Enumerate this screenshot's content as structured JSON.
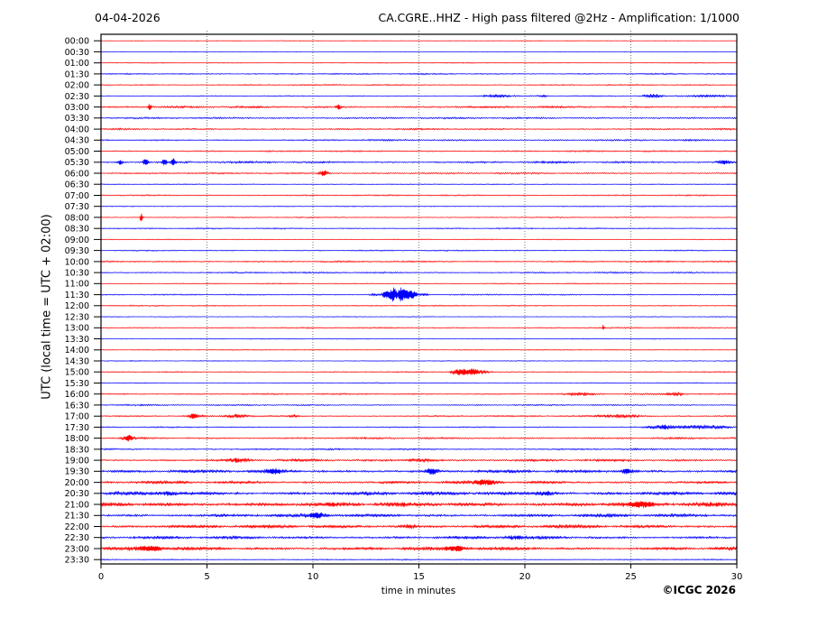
{
  "header": {
    "date": "04-04-2026",
    "title": "CA.CGRE..HHZ - High pass filtered @2Hz - Amplification: 1/1000"
  },
  "footer": {
    "copyright": "©ICGC 2026"
  },
  "chart_data": {
    "type": "helicorder",
    "station": "CA.CGRE..HHZ",
    "date": "04-04-2026",
    "title": "CA.CGRE..HHZ - High pass filtered @2Hz - Amplification: 1/1000",
    "xlabel": "time in minutes",
    "ylabel": "UTC (local time = UTC + 02:00)",
    "xlim": [
      0,
      30
    ],
    "x_ticks": [
      0,
      5,
      10,
      15,
      20,
      25,
      30
    ],
    "grid_minutes": [
      5,
      10,
      15,
      20,
      25
    ],
    "grid_on": true,
    "grid_color": "#555555",
    "axis_color": "#000000",
    "trace_colors": {
      "hour": "#ff0000",
      "half_hour": "#0000ff"
    },
    "minutes_per_row": 30,
    "rows": [
      {
        "time": "00:00",
        "color": "red",
        "noise": 0.35,
        "events": []
      },
      {
        "time": "00:30",
        "color": "blue",
        "noise": 0.35,
        "events": []
      },
      {
        "time": "01:00",
        "color": "red",
        "noise": 0.5,
        "events": []
      },
      {
        "time": "01:30",
        "color": "blue",
        "noise": 0.85,
        "events": []
      },
      {
        "time": "02:00",
        "color": "red",
        "noise": 0.75,
        "events": []
      },
      {
        "time": "02:30",
        "color": "blue",
        "noise": 0.6,
        "events": [
          {
            "m": 18.6,
            "d": 1.6,
            "a": 1.4
          },
          {
            "m": 20.8,
            "d": 0.6,
            "a": 0.9
          },
          {
            "m": 26.0,
            "d": 0.9,
            "a": 1.7
          },
          {
            "m": 28.7,
            "d": 2.5,
            "a": 1.1
          }
        ]
      },
      {
        "time": "03:00",
        "color": "red",
        "noise": 1.15,
        "events": [
          {
            "m": 2.3,
            "d": 0.15,
            "a": 2.6
          },
          {
            "m": 11.2,
            "d": 0.3,
            "a": 1.9
          }
        ]
      },
      {
        "time": "03:30",
        "color": "blue",
        "noise": 1.0,
        "events": []
      },
      {
        "time": "04:00",
        "color": "red",
        "noise": 0.95,
        "events": []
      },
      {
        "time": "04:30",
        "color": "blue",
        "noise": 0.95,
        "events": []
      },
      {
        "time": "05:00",
        "color": "red",
        "noise": 0.85,
        "events": []
      },
      {
        "time": "05:30",
        "color": "blue",
        "noise": 1.15,
        "events": [
          {
            "m": 0.9,
            "d": 0.25,
            "a": 2.2
          },
          {
            "m": 2.1,
            "d": 0.3,
            "a": 2.6
          },
          {
            "m": 3.0,
            "d": 0.25,
            "a": 2.4
          },
          {
            "m": 3.4,
            "d": 0.2,
            "a": 3.2
          },
          {
            "m": 29.4,
            "d": 0.8,
            "a": 1.8
          }
        ]
      },
      {
        "time": "06:00",
        "color": "red",
        "noise": 0.9,
        "events": [
          {
            "m": 10.5,
            "d": 0.45,
            "a": 2.4
          }
        ]
      },
      {
        "time": "06:30",
        "color": "blue",
        "noise": 0.55,
        "events": []
      },
      {
        "time": "07:00",
        "color": "red",
        "noise": 0.8,
        "events": []
      },
      {
        "time": "07:30",
        "color": "blue",
        "noise": 0.55,
        "events": []
      },
      {
        "time": "08:00",
        "color": "red",
        "noise": 0.6,
        "events": [
          {
            "m": 1.9,
            "d": 0.12,
            "a": 4.5
          }
        ]
      },
      {
        "time": "08:30",
        "color": "blue",
        "noise": 0.75,
        "events": []
      },
      {
        "time": "09:00",
        "color": "red",
        "noise": 0.5,
        "events": []
      },
      {
        "time": "09:30",
        "color": "blue",
        "noise": 0.7,
        "events": []
      },
      {
        "time": "10:00",
        "color": "red",
        "noise": 0.9,
        "events": []
      },
      {
        "time": "10:30",
        "color": "blue",
        "noise": 0.9,
        "events": []
      },
      {
        "time": "11:00",
        "color": "red",
        "noise": 0.6,
        "events": []
      },
      {
        "time": "11:30",
        "color": "blue",
        "noise": 0.7,
        "events": [
          {
            "m": 12.9,
            "d": 0.5,
            "a": 1.2
          },
          {
            "m": 13.5,
            "d": 0.5,
            "a": 3.5
          },
          {
            "m": 13.8,
            "d": 0.3,
            "a": 6.5
          },
          {
            "m": 14.15,
            "d": 0.3,
            "a": 7.5
          },
          {
            "m": 14.45,
            "d": 0.3,
            "a": 6.0
          },
          {
            "m": 14.75,
            "d": 0.4,
            "a": 3.0
          },
          {
            "m": 15.2,
            "d": 0.5,
            "a": 1.2
          }
        ]
      },
      {
        "time": "12:00",
        "color": "red",
        "noise": 0.7,
        "events": []
      },
      {
        "time": "12:30",
        "color": "blue",
        "noise": 0.45,
        "events": []
      },
      {
        "time": "13:00",
        "color": "red",
        "noise": 0.75,
        "events": [
          {
            "m": 23.7,
            "d": 0.1,
            "a": 2.8
          }
        ]
      },
      {
        "time": "13:30",
        "color": "blue",
        "noise": 0.55,
        "events": []
      },
      {
        "time": "14:00",
        "color": "red",
        "noise": 0.55,
        "events": []
      },
      {
        "time": "14:30",
        "color": "blue",
        "noise": 0.5,
        "events": []
      },
      {
        "time": "15:00",
        "color": "red",
        "noise": 0.65,
        "events": [
          {
            "m": 16.6,
            "d": 0.4,
            "a": 1.5
          },
          {
            "m": 17.0,
            "d": 0.5,
            "a": 3.2
          },
          {
            "m": 17.5,
            "d": 0.5,
            "a": 3.0
          },
          {
            "m": 18.0,
            "d": 0.6,
            "a": 1.6
          }
        ]
      },
      {
        "time": "15:30",
        "color": "blue",
        "noise": 0.55,
        "events": []
      },
      {
        "time": "16:00",
        "color": "red",
        "noise": 0.85,
        "events": [
          {
            "m": 22.6,
            "d": 1.2,
            "a": 1.2
          },
          {
            "m": 27.1,
            "d": 0.9,
            "a": 1.5
          }
        ]
      },
      {
        "time": "16:30",
        "color": "blue",
        "noise": 0.75,
        "events": [
          {
            "m": 1.5,
            "d": 2.0,
            "a": 0.6
          }
        ]
      },
      {
        "time": "17:00",
        "color": "red",
        "noise": 0.9,
        "events": [
          {
            "m": 4.4,
            "d": 0.6,
            "a": 1.8
          },
          {
            "m": 6.4,
            "d": 1.0,
            "a": 1.8
          },
          {
            "m": 9.1,
            "d": 0.5,
            "a": 1.2
          },
          {
            "m": 24.5,
            "d": 2.2,
            "a": 1.4
          }
        ]
      },
      {
        "time": "17:30",
        "color": "blue",
        "noise": 0.75,
        "events": [
          {
            "m": 26.5,
            "d": 1.5,
            "a": 1.9
          },
          {
            "m": 28.5,
            "d": 2.5,
            "a": 1.5
          }
        ]
      },
      {
        "time": "18:00",
        "color": "red",
        "noise": 1.05,
        "events": [
          {
            "m": 1.3,
            "d": 0.5,
            "a": 2.2
          }
        ]
      },
      {
        "time": "18:30",
        "color": "blue",
        "noise": 0.95,
        "events": []
      },
      {
        "time": "19:00",
        "color": "red",
        "noise": 1.25,
        "events": [
          {
            "m": 6.5,
            "d": 1.0,
            "a": 1.2
          },
          {
            "m": 15.2,
            "d": 1.5,
            "a": 1.4
          }
        ]
      },
      {
        "time": "19:30",
        "color": "blue",
        "noise": 1.6,
        "events": [
          {
            "m": 8.2,
            "d": 0.8,
            "a": 1.5
          },
          {
            "m": 15.6,
            "d": 0.5,
            "a": 2.4
          },
          {
            "m": 24.8,
            "d": 0.6,
            "a": 1.8
          }
        ]
      },
      {
        "time": "20:00",
        "color": "red",
        "noise": 1.5,
        "events": [
          {
            "m": 18.2,
            "d": 1.2,
            "a": 1.6
          }
        ]
      },
      {
        "time": "20:30",
        "color": "blue",
        "noise": 1.85,
        "events": [
          {
            "m": 3.2,
            "d": 0.8,
            "a": 1.4
          },
          {
            "m": 21.0,
            "d": 0.9,
            "a": 1.5
          }
        ]
      },
      {
        "time": "21:00",
        "color": "red",
        "noise": 2.1,
        "events": [
          {
            "m": 25.5,
            "d": 1.0,
            "a": 1.3
          }
        ]
      },
      {
        "time": "21:30",
        "color": "blue",
        "noise": 1.7,
        "events": [
          {
            "m": 10.2,
            "d": 0.8,
            "a": 1.6
          }
        ]
      },
      {
        "time": "22:00",
        "color": "red",
        "noise": 1.7,
        "events": [
          {
            "m": 14.5,
            "d": 1.0,
            "a": 1.4
          }
        ]
      },
      {
        "time": "22:30",
        "color": "blue",
        "noise": 1.5,
        "events": [
          {
            "m": 19.5,
            "d": 1.0,
            "a": 1.3
          }
        ]
      },
      {
        "time": "23:00",
        "color": "red",
        "noise": 1.7,
        "events": [
          {
            "m": 2.5,
            "d": 1.5,
            "a": 1.5
          },
          {
            "m": 16.8,
            "d": 1.0,
            "a": 1.6
          }
        ]
      },
      {
        "time": "23:30",
        "color": "blue",
        "noise": 0.7,
        "events": []
      }
    ]
  }
}
